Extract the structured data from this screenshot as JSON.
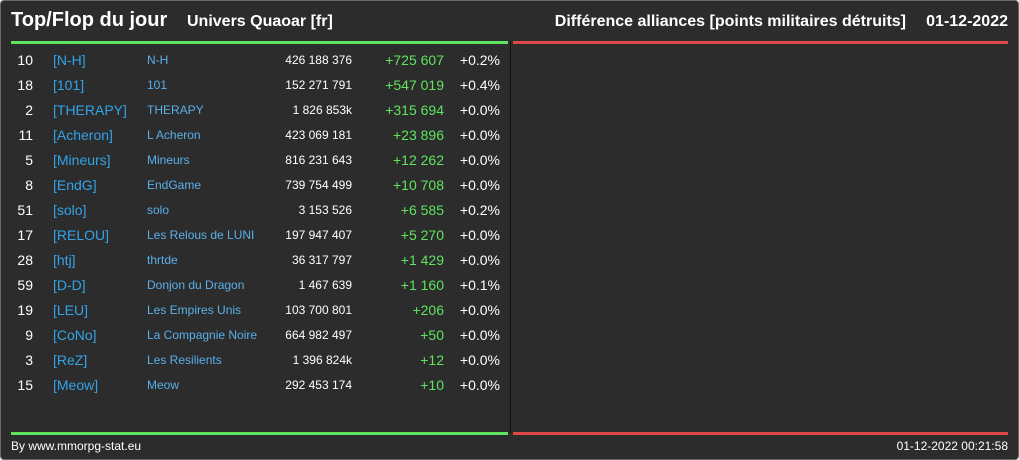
{
  "header": {
    "title": "Top/Flop du jour",
    "universe": "Univers Quaoar [fr]",
    "metric": "Différence alliances [points militaires détruits]",
    "date": "01-12-2022"
  },
  "colors": {
    "background": "#2c2c2c",
    "top_line": "#5fe45f",
    "flop_line": "#e04848",
    "tag": "#33a3e8",
    "name": "#5ab0ea",
    "delta_positive": "#5fe45f"
  },
  "rows": [
    {
      "rank": "10",
      "tag": "[N-H]",
      "name": "N-H",
      "points": "426 188 376",
      "delta": "+725 607",
      "pct": "+0.2%"
    },
    {
      "rank": "18",
      "tag": "[101]",
      "name": "101",
      "points": "152 271 791",
      "delta": "+547 019",
      "pct": "+0.4%"
    },
    {
      "rank": "2",
      "tag": "[THERAPY]",
      "name": "THERAPY",
      "points": "1 826 853k",
      "delta": "+315 694",
      "pct": "+0.0%"
    },
    {
      "rank": "11",
      "tag": "[Acheron]",
      "name": "L Acheron",
      "points": "423 069 181",
      "delta": "+23 896",
      "pct": "+0.0%"
    },
    {
      "rank": "5",
      "tag": "[Mineurs]",
      "name": "Mineurs",
      "points": "816 231 643",
      "delta": "+12 262",
      "pct": "+0.0%"
    },
    {
      "rank": "8",
      "tag": "[EndG]",
      "name": "EndGame",
      "points": "739 754 499",
      "delta": "+10 708",
      "pct": "+0.0%"
    },
    {
      "rank": "51",
      "tag": "[solo]",
      "name": "solo",
      "points": "3 153 526",
      "delta": "+6 585",
      "pct": "+0.2%"
    },
    {
      "rank": "17",
      "tag": "[RELOU]",
      "name": "Les Relous de LUNI",
      "points": "197 947 407",
      "delta": "+5 270",
      "pct": "+0.0%"
    },
    {
      "rank": "28",
      "tag": "[htj]",
      "name": "thrtde",
      "points": "36 317 797",
      "delta": "+1 429",
      "pct": "+0.0%"
    },
    {
      "rank": "59",
      "tag": "[D-D]",
      "name": "Donjon du Dragon",
      "points": "1 467 639",
      "delta": "+1 160",
      "pct": "+0.1%"
    },
    {
      "rank": "19",
      "tag": "[LEU]",
      "name": "Les Empires Unis",
      "points": "103 700 801",
      "delta": "+206",
      "pct": "+0.0%"
    },
    {
      "rank": "9",
      "tag": "[CoNo]",
      "name": "La Compagnie Noire",
      "points": "664 982 497",
      "delta": "+50",
      "pct": "+0.0%"
    },
    {
      "rank": "3",
      "tag": "[ReZ]",
      "name": "Les Resilients",
      "points": "1 396 824k",
      "delta": "+12",
      "pct": "+0.0%"
    },
    {
      "rank": "15",
      "tag": "[Meow]",
      "name": "Meow",
      "points": "292 453 174",
      "delta": "+10",
      "pct": "+0.0%"
    }
  ],
  "footer": {
    "credit": "By www.mmorpg-stat.eu",
    "timestamp": "01-12-2022 00:21:58"
  }
}
